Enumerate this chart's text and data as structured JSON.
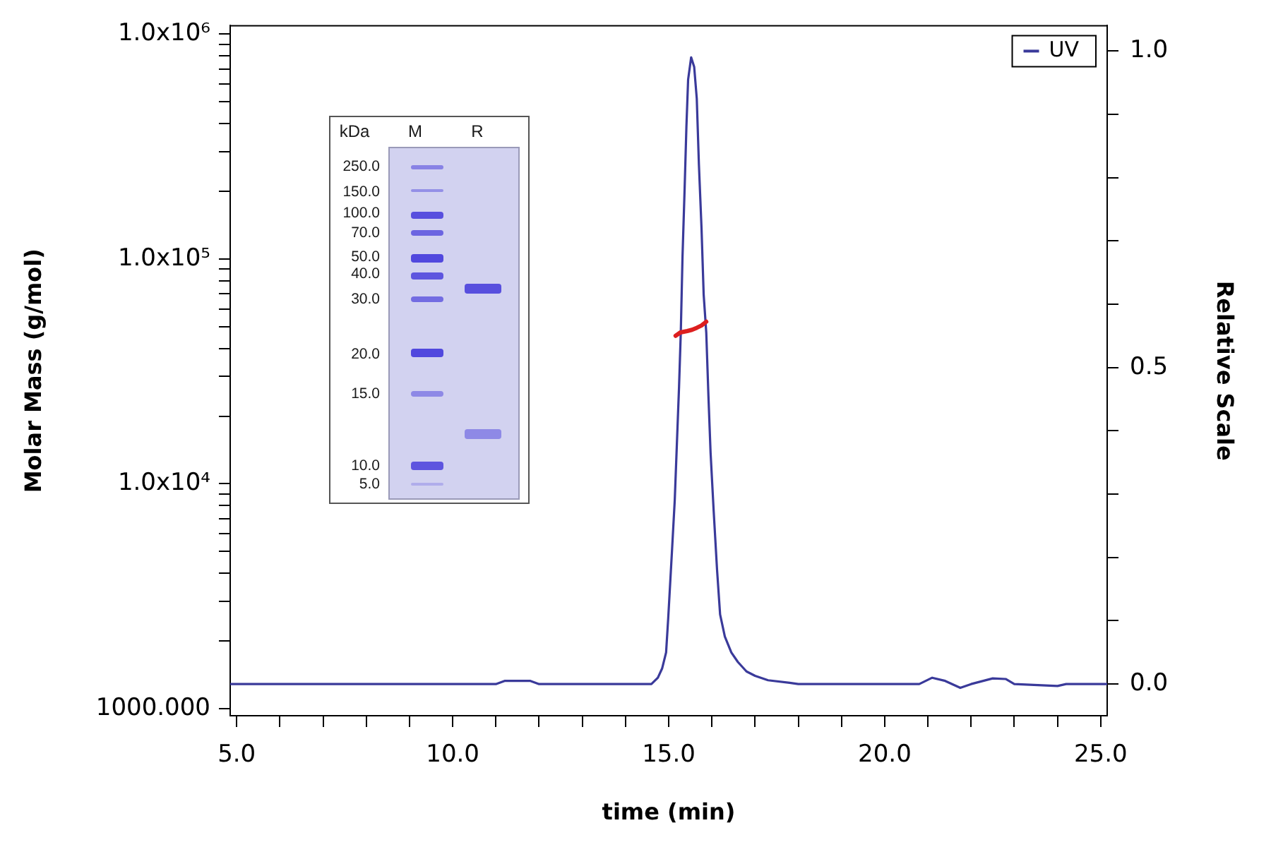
{
  "chart_data": {
    "type": "line",
    "xlabel": "time (min)",
    "ylabel": "Molar Mass (g/mol)",
    "y2label": "Relative Scale",
    "annotations": [
      "kDa",
      "M",
      "R",
      "250.0",
      "150.0",
      "100.0",
      "70.0",
      "50.0",
      "40.0",
      "30.0",
      "20.0",
      "15.0",
      "10.0",
      "5.0"
    ],
    "series": [
      {
        "name": "UV",
        "color": "#3a3a9a",
        "axis": "y2",
        "x": [
          4.85,
          11.0,
          11.2,
          11.8,
          12.0,
          14.6,
          14.75,
          14.85,
          14.94,
          14.99,
          15.08,
          15.14,
          15.19,
          15.24,
          15.28,
          15.32,
          15.37,
          15.41,
          15.45,
          15.52,
          15.59,
          15.65,
          15.7,
          15.76,
          15.81,
          15.87,
          15.92,
          15.97,
          16.04,
          16.12,
          16.19,
          16.3,
          16.45,
          16.6,
          16.8,
          17.0,
          17.3,
          17.8,
          18.0,
          20.8,
          21.1,
          21.4,
          21.75,
          22.0,
          22.5,
          22.8,
          23.0,
          24.0,
          24.2,
          25.15
        ],
        "values": [
          0,
          0,
          0.005,
          0.005,
          0,
          0,
          0.01,
          0.025,
          0.05,
          0.105,
          0.215,
          0.29,
          0.38,
          0.47,
          0.555,
          0.675,
          0.785,
          0.88,
          0.955,
          0.99,
          0.975,
          0.925,
          0.82,
          0.72,
          0.615,
          0.555,
          0.455,
          0.365,
          0.275,
          0.18,
          0.11,
          0.075,
          0.05,
          0.035,
          0.02,
          0.013,
          0.006,
          0.002,
          0,
          0,
          0.01,
          0.005,
          -0.006,
          0,
          0.009,
          0.008,
          0,
          -0.003,
          0,
          0
        ]
      },
      {
        "color": "#dd1f1f",
        "x": [
          15.16,
          15.27,
          15.43,
          15.54,
          15.65,
          15.76,
          15.87
        ],
        "values": [
          45500,
          47100,
          47800,
          48400,
          49400,
          50600,
          52600
        ]
      }
    ],
    "xlim": [
      4.85,
      25.15
    ],
    "xticks": [
      {
        "value": 5,
        "label": "5.0"
      },
      {
        "value": 6,
        "label": null
      },
      {
        "value": 7,
        "label": null
      },
      {
        "value": 8,
        "label": null
      },
      {
        "value": 9,
        "label": null
      },
      {
        "value": 10,
        "label": "10.0"
      },
      {
        "value": 11,
        "label": null
      },
      {
        "value": 12,
        "label": null
      },
      {
        "value": 13,
        "label": null
      },
      {
        "value": 14,
        "label": null
      },
      {
        "value": 15,
        "label": "15.0"
      },
      {
        "value": 16,
        "label": null
      },
      {
        "value": 17,
        "label": null
      },
      {
        "value": 18,
        "label": null
      },
      {
        "value": 19,
        "label": null
      },
      {
        "value": 20,
        "label": "20.0"
      },
      {
        "value": 21,
        "label": null
      },
      {
        "value": 22,
        "label": null
      },
      {
        "value": 23,
        "label": null
      },
      {
        "value": 24,
        "label": null
      },
      {
        "value": 25,
        "label": "25.0"
      }
    ],
    "ylim": [
      930,
      1090000
    ],
    "yticks": [
      {
        "value": 1000,
        "label": "1000.000"
      },
      {
        "value": 2000,
        "label": null
      },
      {
        "value": 3000,
        "label": null
      },
      {
        "value": 4000,
        "label": null
      },
      {
        "value": 5000,
        "label": null
      },
      {
        "value": 6000,
        "label": null
      },
      {
        "value": 7000,
        "label": null
      },
      {
        "value": 8000,
        "label": null
      },
      {
        "value": 9000,
        "label": null
      },
      {
        "value": 10000,
        "label": "1.0x10⁴"
      },
      {
        "value": 20000,
        "label": null
      },
      {
        "value": 30000,
        "label": null
      },
      {
        "value": 40000,
        "label": null
      },
      {
        "value": 50000,
        "label": null
      },
      {
        "value": 60000,
        "label": null
      },
      {
        "value": 70000,
        "label": null
      },
      {
        "value": 80000,
        "label": null
      },
      {
        "value": 90000,
        "label": null
      },
      {
        "value": 100000,
        "label": "1.0x10⁵"
      },
      {
        "value": 200000,
        "label": null
      },
      {
        "value": 300000,
        "label": null
      },
      {
        "value": 400000,
        "label": null
      },
      {
        "value": 500000,
        "label": null
      },
      {
        "value": 600000,
        "label": null
      },
      {
        "value": 700000,
        "label": null
      },
      {
        "value": 800000,
        "label": null
      },
      {
        "value": 900000,
        "label": null
      },
      {
        "value": 1000000,
        "label": "1.0x10⁶"
      }
    ],
    "y2lim": [
      -0.05,
      1.04
    ],
    "y2ticks": [
      {
        "value": 0,
        "label": "0.0"
      },
      {
        "value": 0.1,
        "label": null
      },
      {
        "value": 0.2,
        "label": null
      },
      {
        "value": 0.3,
        "label": null
      },
      {
        "value": 0.4,
        "label": null
      },
      {
        "value": 0.5,
        "label": "0.5"
      },
      {
        "value": 0.6,
        "label": null
      },
      {
        "value": 0.7,
        "label": null
      },
      {
        "value": 0.8,
        "label": null
      },
      {
        "value": 0.9,
        "label": null
      },
      {
        "value": 1,
        "label": "1.0"
      }
    ],
    "log": "y",
    "legend": "top right",
    "marker": "none"
  }
}
